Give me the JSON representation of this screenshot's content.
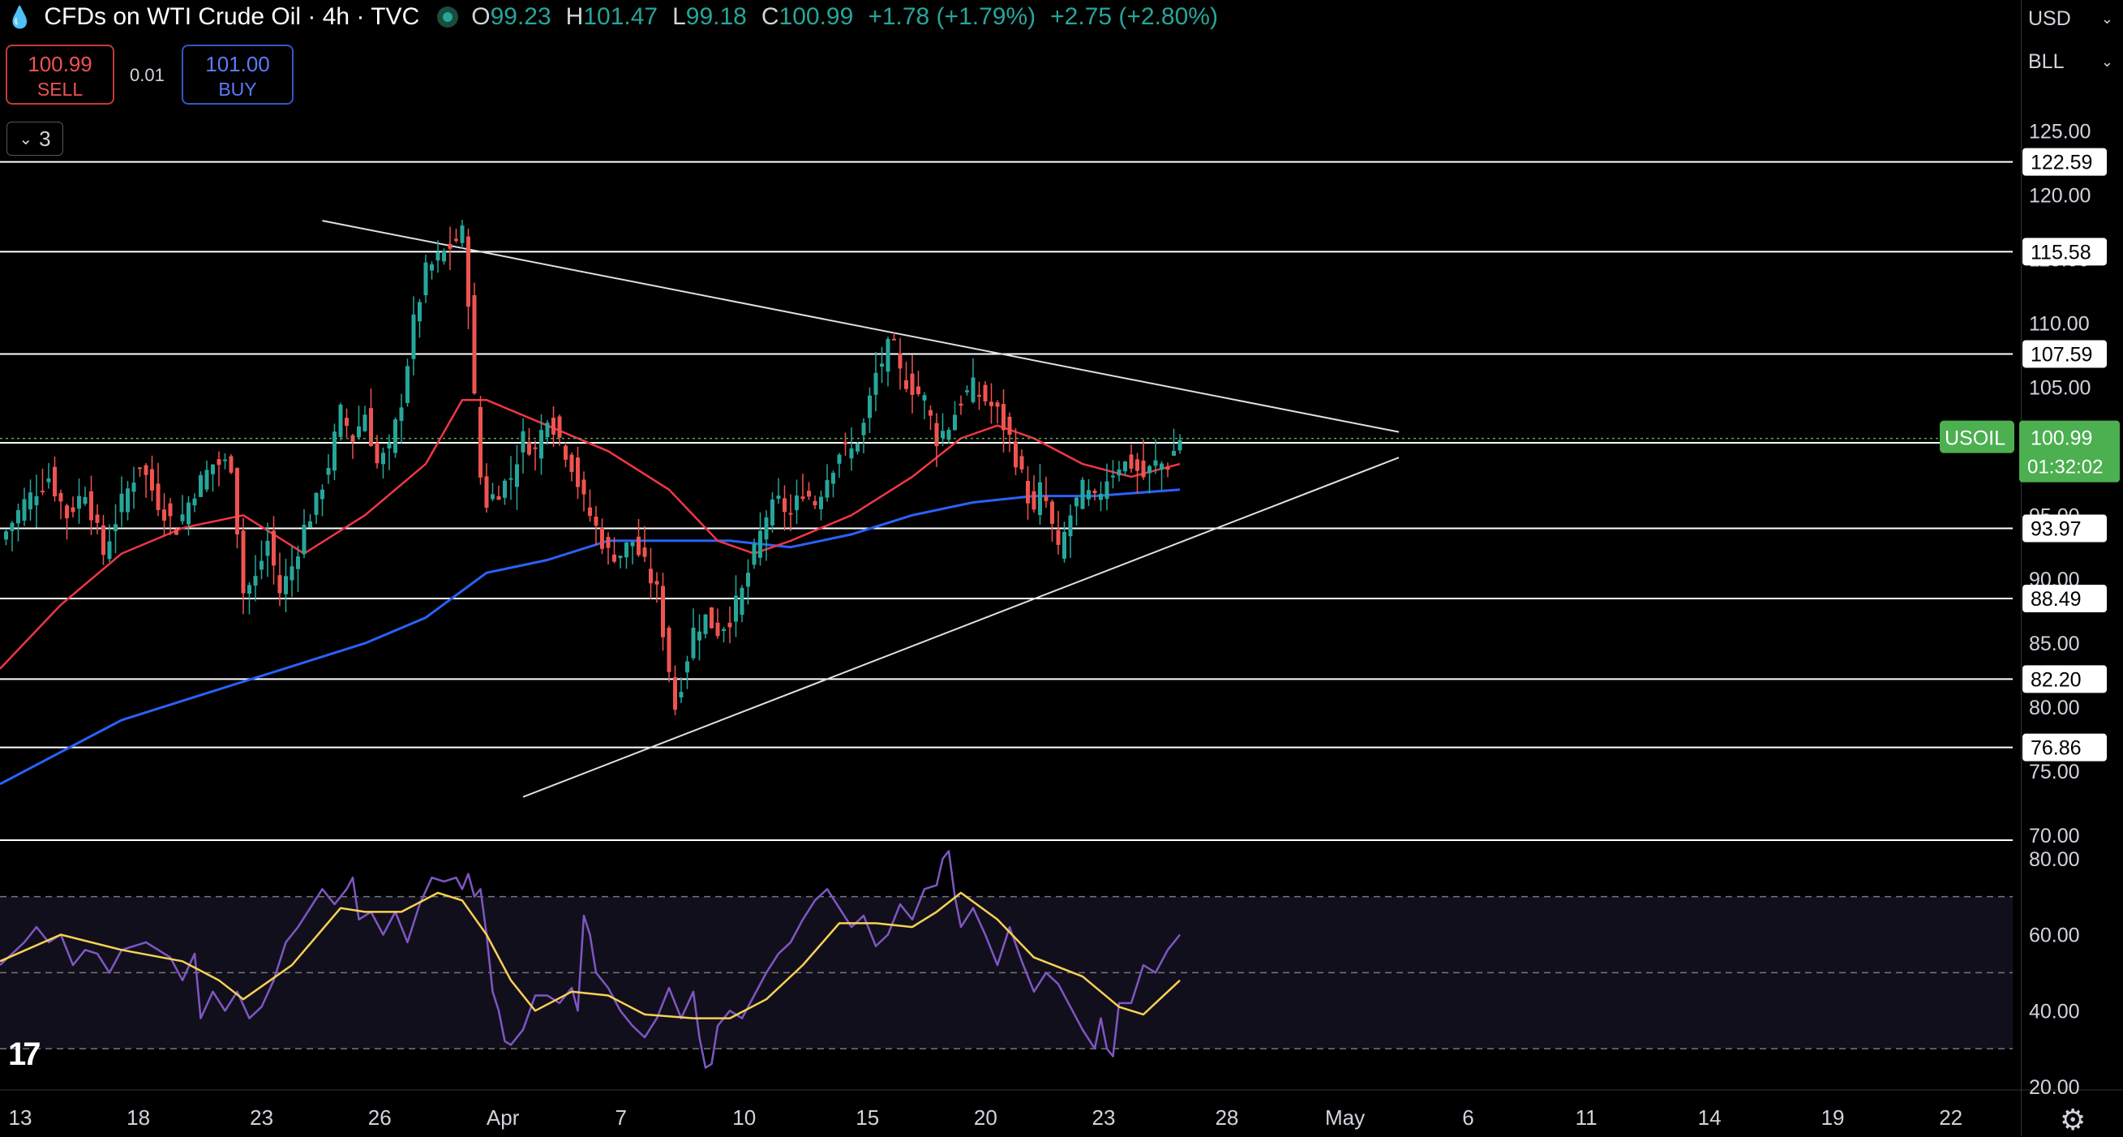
{
  "header": {
    "title": "CFDs on WTI Crude Oil · 4h · TVC",
    "open_label": "O",
    "open": "99.23",
    "high_label": "H",
    "high": "101.47",
    "low_label": "L",
    "low": "99.18",
    "close_label": "C",
    "close": "100.99",
    "change": "+1.78 (+1.79%)",
    "change2": "+2.75 (+2.80%)"
  },
  "trade": {
    "sell_price": "100.99",
    "sell_label": "SELL",
    "spread": "0.01",
    "buy_price": "101.00",
    "buy_label": "BUY"
  },
  "indicators_count": "3",
  "right_panel": {
    "currency": "USD",
    "unit": "BLL"
  },
  "colors": {
    "up": "#26a69a",
    "down": "#ef5350",
    "ma_fast": "#f23645",
    "ma_slow": "#2962ff",
    "rsi": "#7e57c2",
    "rsi_ma": "#f7d154",
    "price_tag": "#4caf50"
  },
  "chart_data": [
    {
      "type": "candlestick",
      "symbol": "USOIL",
      "timeframe": "4h",
      "last_price": "100.99",
      "countdown": "01:32:02",
      "y_ticks": [
        "125.00",
        "120.00",
        "115.00",
        "110.00",
        "105.00",
        "100.00",
        "95.00",
        "90.00",
        "85.00",
        "80.00",
        "75.00",
        "70.00"
      ],
      "y_range": [
        70,
        127
      ],
      "x_ticks": [
        "13",
        "18",
        "23",
        "26",
        "Apr",
        "7",
        "10",
        "15",
        "20",
        "23",
        "28",
        "May",
        "6",
        "11",
        "14",
        "19",
        "22"
      ],
      "horizontal_levels": [
        "122.59",
        "115.58",
        "107.59",
        "100.65",
        "93.97",
        "88.49",
        "82.20",
        "76.86"
      ],
      "close_path": [
        [
          0,
          93
        ],
        [
          4,
          96
        ],
        [
          8,
          98
        ],
        [
          11,
          95
        ],
        [
          14,
          97
        ],
        [
          17,
          92
        ],
        [
          20,
          96
        ],
        [
          23,
          99
        ],
        [
          26,
          96
        ],
        [
          29,
          94
        ],
        [
          32,
          97
        ],
        [
          35,
          99
        ],
        [
          38,
          99
        ],
        [
          40,
          89
        ],
        [
          42,
          90
        ],
        [
          44,
          93
        ],
        [
          46,
          89
        ],
        [
          48,
          91
        ],
        [
          50,
          94
        ],
        [
          52,
          96
        ],
        [
          54,
          99
        ],
        [
          56,
          103
        ],
        [
          58,
          101
        ],
        [
          60,
          103
        ],
        [
          62,
          99
        ],
        [
          64,
          100
        ],
        [
          66,
          104
        ],
        [
          68,
          110
        ],
        [
          70,
          114
        ],
        [
          72,
          115
        ],
        [
          74,
          116
        ],
        [
          76,
          117
        ],
        [
          77,
          112
        ],
        [
          78,
          104
        ],
        [
          79,
          98
        ],
        [
          80,
          96
        ],
        [
          82,
          97
        ],
        [
          84,
          98
        ],
        [
          86,
          101
        ],
        [
          88,
          100
        ],
        [
          90,
          103
        ],
        [
          92,
          101
        ],
        [
          94,
          99
        ],
        [
          96,
          96
        ],
        [
          98,
          94
        ],
        [
          100,
          92
        ],
        [
          102,
          92
        ],
        [
          104,
          93
        ],
        [
          106,
          91
        ],
        [
          108,
          89
        ],
        [
          110,
          83
        ],
        [
          111,
          80
        ],
        [
          112,
          82
        ],
        [
          114,
          86
        ],
        [
          116,
          87
        ],
        [
          118,
          86
        ],
        [
          120,
          87
        ],
        [
          122,
          89
        ],
        [
          124,
          92
        ],
        [
          126,
          95
        ],
        [
          128,
          96
        ],
        [
          130,
          95
        ],
        [
          132,
          97
        ],
        [
          134,
          96
        ],
        [
          136,
          98
        ],
        [
          138,
          100
        ],
        [
          140,
          100
        ],
        [
          142,
          102
        ],
        [
          144,
          106
        ],
        [
          146,
          108
        ],
        [
          147,
          108
        ],
        [
          148,
          106
        ],
        [
          150,
          105
        ],
        [
          152,
          104
        ],
        [
          154,
          101
        ],
        [
          156,
          102
        ],
        [
          158,
          104
        ],
        [
          160,
          105
        ],
        [
          162,
          104
        ],
        [
          164,
          103
        ],
        [
          166,
          101
        ],
        [
          168,
          98
        ],
        [
          170,
          95
        ],
        [
          171,
          97
        ],
        [
          172,
          96
        ],
        [
          174,
          92
        ],
        [
          176,
          95
        ],
        [
          178,
          97
        ],
        [
          180,
          96
        ],
        [
          182,
          98
        ],
        [
          184,
          99
        ],
        [
          186,
          99
        ],
        [
          188,
          98
        ],
        [
          190,
          99
        ],
        [
          192,
          99
        ],
        [
          194,
          101
        ]
      ],
      "ma_fast": [
        [
          0,
          83
        ],
        [
          10,
          88
        ],
        [
          20,
          92
        ],
        [
          30,
          94
        ],
        [
          40,
          95
        ],
        [
          50,
          92
        ],
        [
          60,
          95
        ],
        [
          70,
          99
        ],
        [
          76,
          104
        ],
        [
          80,
          104
        ],
        [
          90,
          102
        ],
        [
          100,
          100
        ],
        [
          110,
          97
        ],
        [
          118,
          93
        ],
        [
          124,
          92
        ],
        [
          130,
          93
        ],
        [
          140,
          95
        ],
        [
          150,
          98
        ],
        [
          158,
          101
        ],
        [
          164,
          102
        ],
        [
          170,
          101
        ],
        [
          178,
          99
        ],
        [
          186,
          98
        ],
        [
          194,
          99
        ]
      ],
      "ma_slow": [
        [
          0,
          74
        ],
        [
          20,
          79
        ],
        [
          40,
          82
        ],
        [
          60,
          85
        ],
        [
          70,
          87
        ],
        [
          80,
          90.5
        ],
        [
          90,
          91.5
        ],
        [
          100,
          93
        ],
        [
          110,
          93
        ],
        [
          120,
          93
        ],
        [
          130,
          92.5
        ],
        [
          140,
          93.5
        ],
        [
          150,
          95
        ],
        [
          160,
          96
        ],
        [
          170,
          96.5
        ],
        [
          180,
          96.5
        ],
        [
          194,
          97
        ]
      ],
      "trendline_upper": [
        [
          53,
          118
        ],
        [
          230,
          101.5
        ]
      ],
      "trendline_lower": [
        [
          86,
          73
        ],
        [
          230,
          99.5
        ]
      ]
    },
    {
      "type": "line",
      "name": "RSI",
      "y_ticks": [
        "80.00",
        "60.00",
        "40.00",
        "20.00"
      ],
      "y_range": [
        20,
        84
      ],
      "bands": [
        30,
        50,
        70
      ],
      "rsi": [
        [
          0,
          52
        ],
        [
          4,
          58
        ],
        [
          6,
          62
        ],
        [
          8,
          58
        ],
        [
          10,
          60
        ],
        [
          12,
          52
        ],
        [
          14,
          56
        ],
        [
          16,
          55
        ],
        [
          18,
          50
        ],
        [
          20,
          56
        ],
        [
          24,
          58
        ],
        [
          28,
          54
        ],
        [
          30,
          48
        ],
        [
          32,
          55
        ],
        [
          33,
          38
        ],
        [
          35,
          45
        ],
        [
          37,
          40
        ],
        [
          39,
          45
        ],
        [
          41,
          38
        ],
        [
          43,
          41
        ],
        [
          45,
          48
        ],
        [
          47,
          58
        ],
        [
          49,
          62
        ],
        [
          51,
          67
        ],
        [
          53,
          72
        ],
        [
          55,
          68
        ],
        [
          57,
          72
        ],
        [
          58,
          75
        ],
        [
          59,
          64
        ],
        [
          61,
          66
        ],
        [
          63,
          60
        ],
        [
          65,
          66
        ],
        [
          67,
          58
        ],
        [
          69,
          68
        ],
        [
          71,
          75
        ],
        [
          73,
          74
        ],
        [
          75,
          75
        ],
        [
          76,
          72
        ],
        [
          77,
          76
        ],
        [
          78,
          70
        ],
        [
          79,
          72
        ],
        [
          80,
          60
        ],
        [
          81,
          45
        ],
        [
          82,
          40
        ],
        [
          83,
          32
        ],
        [
          84,
          31
        ],
        [
          86,
          35
        ],
        [
          88,
          44
        ],
        [
          90,
          44
        ],
        [
          92,
          42
        ],
        [
          94,
          46
        ],
        [
          95,
          40
        ],
        [
          96,
          65
        ],
        [
          97,
          60
        ],
        [
          98,
          50
        ],
        [
          100,
          46
        ],
        [
          102,
          40
        ],
        [
          104,
          36
        ],
        [
          106,
          33
        ],
        [
          108,
          38
        ],
        [
          110,
          46
        ],
        [
          112,
          38
        ],
        [
          114,
          45
        ],
        [
          115,
          33
        ],
        [
          116,
          25
        ],
        [
          117,
          26
        ],
        [
          118,
          36
        ],
        [
          120,
          40
        ],
        [
          122,
          38
        ],
        [
          124,
          44
        ],
        [
          126,
          50
        ],
        [
          128,
          55
        ],
        [
          130,
          58
        ],
        [
          132,
          64
        ],
        [
          134,
          69
        ],
        [
          136,
          72
        ],
        [
          138,
          67
        ],
        [
          140,
          62
        ],
        [
          142,
          65
        ],
        [
          144,
          57
        ],
        [
          146,
          60
        ],
        [
          148,
          68
        ],
        [
          150,
          64
        ],
        [
          152,
          72
        ],
        [
          154,
          73
        ],
        [
          155,
          80
        ],
        [
          156,
          82
        ],
        [
          157,
          70
        ],
        [
          158,
          62
        ],
        [
          160,
          67
        ],
        [
          162,
          60
        ],
        [
          164,
          52
        ],
        [
          166,
          62
        ],
        [
          168,
          53
        ],
        [
          170,
          45
        ],
        [
          172,
          50
        ],
        [
          174,
          47
        ],
        [
          176,
          41
        ],
        [
          178,
          35
        ],
        [
          180,
          30
        ],
        [
          181,
          38
        ],
        [
          182,
          30
        ],
        [
          183,
          28
        ],
        [
          184,
          42
        ],
        [
          186,
          42
        ],
        [
          188,
          52
        ],
        [
          190,
          50
        ],
        [
          192,
          56
        ],
        [
          194,
          60
        ]
      ],
      "rsi_ma": [
        [
          0,
          53
        ],
        [
          10,
          60
        ],
        [
          20,
          56
        ],
        [
          30,
          53
        ],
        [
          36,
          48
        ],
        [
          40,
          43
        ],
        [
          48,
          52
        ],
        [
          56,
          67
        ],
        [
          60,
          66
        ],
        [
          66,
          66
        ],
        [
          72,
          71
        ],
        [
          76,
          69
        ],
        [
          80,
          60
        ],
        [
          84,
          48
        ],
        [
          88,
          40
        ],
        [
          94,
          45
        ],
        [
          100,
          44
        ],
        [
          106,
          39
        ],
        [
          114,
          38
        ],
        [
          120,
          38
        ],
        [
          126,
          43
        ],
        [
          132,
          52
        ],
        [
          138,
          63
        ],
        [
          144,
          63
        ],
        [
          150,
          62
        ],
        [
          154,
          66
        ],
        [
          158,
          71
        ],
        [
          164,
          64
        ],
        [
          170,
          54
        ],
        [
          178,
          49
        ],
        [
          184,
          41
        ],
        [
          188,
          39
        ],
        [
          192,
          45
        ],
        [
          194,
          48
        ]
      ]
    }
  ]
}
